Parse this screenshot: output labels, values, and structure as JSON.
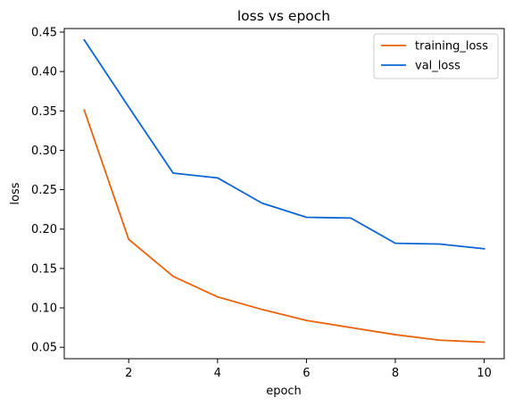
{
  "chart_data": {
    "type": "line",
    "title": "loss vs epoch",
    "xlabel": "epoch",
    "ylabel": "loss",
    "x": [
      1,
      2,
      3,
      4,
      5,
      6,
      7,
      8,
      9,
      10
    ],
    "xlim": [
      0.55,
      10.45
    ],
    "ylim": [
      0.0355,
      0.4545
    ],
    "xticks": [
      2,
      4,
      6,
      8,
      10
    ],
    "xtick_labels": [
      "2",
      "4",
      "6",
      "8",
      "10"
    ],
    "yticks": [
      0.05,
      0.1,
      0.15,
      0.2,
      0.25,
      0.3,
      0.35,
      0.4,
      0.45
    ],
    "ytick_labels": [
      "0.05",
      "0.10",
      "0.15",
      "0.20",
      "0.25",
      "0.30",
      "0.35",
      "0.40",
      "0.45"
    ],
    "grid": false,
    "legend_position": "top-right",
    "series": [
      {
        "name": "training_loss",
        "color": "#e8630a",
        "values": [
          0.351,
          0.187,
          0.14,
          0.114,
          0.098,
          0.084,
          0.075,
          0.066,
          0.059,
          0.0565
        ]
      },
      {
        "name": "val_loss",
        "color": "#0a64d4",
        "values": [
          0.44,
          0.355,
          0.271,
          0.265,
          0.233,
          0.215,
          0.214,
          0.182,
          0.181,
          0.175
        ]
      }
    ]
  }
}
